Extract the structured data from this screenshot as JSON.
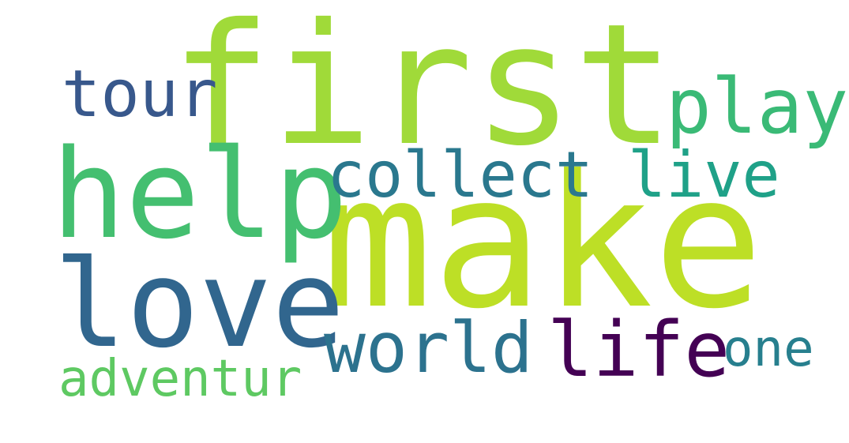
{
  "words": [
    {
      "id": "first",
      "text": "first",
      "color": "#a0da39"
    },
    {
      "id": "make",
      "text": "make",
      "color": "#bddf26"
    },
    {
      "id": "help",
      "text": "help",
      "color": "#44bf70"
    },
    {
      "id": "love",
      "text": "love",
      "color": "#31668e"
    },
    {
      "id": "tour",
      "text": "tour",
      "color": "#38588c"
    },
    {
      "id": "play",
      "text": "play",
      "color": "#3aba76"
    },
    {
      "id": "collect",
      "text": "collect",
      "color": "#2a788e"
    },
    {
      "id": "live",
      "text": "live",
      "color": "#1fa188"
    },
    {
      "id": "world",
      "text": "world",
      "color": "#2c728e"
    },
    {
      "id": "life",
      "text": "life",
      "color": "#440154"
    },
    {
      "id": "one",
      "text": "one",
      "color": "#277f8e"
    },
    {
      "id": "adventur",
      "text": "adventur",
      "color": "#5ec962"
    }
  ]
}
